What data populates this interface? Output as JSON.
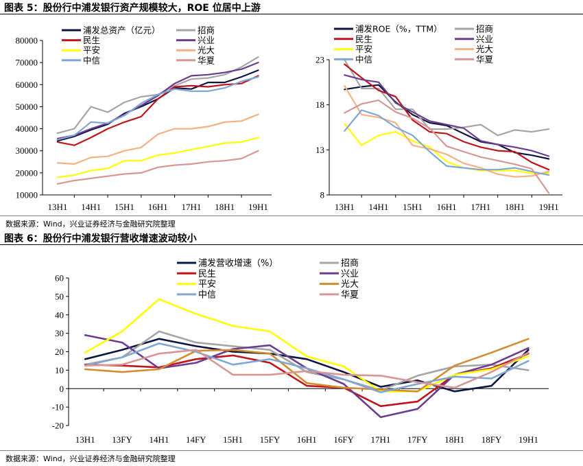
{
  "figure5": {
    "title": "图表 5：股份行中浦发银行资产规模较大，ROE 位居中上游"
  },
  "figure6": {
    "title": "图表 6：股份行中浦发银行营收增速波动较小"
  },
  "source_top": "数据来源：Wind，兴业证券经济与金融研究院整理",
  "source_bottom": "数据来源：Wind，兴业证券经济与金融研究院整理",
  "colors": {
    "浦发": "#0d1642",
    "招商": "#a5a5a5",
    "民生": "#c0141c",
    "兴业": "#6a3d8f",
    "平安": "#ffff00",
    "光大": "#f4b183",
    "中信": "#7fa7d6",
    "华夏": "#d99595",
    "光大_f6": "#d58b32"
  },
  "chart_data": [
    {
      "id": "assets",
      "type": "line",
      "title": "",
      "xlabel": "",
      "ylabel": "",
      "ylim": [
        10000,
        80000
      ],
      "yticks": [
        "80000",
        "70000",
        "60000",
        "50000",
        "40000",
        "30000",
        "20000",
        "10000"
      ],
      "categories": [
        "13H1",
        "14H1",
        "15H1",
        "16H1",
        "17H1",
        "18H1",
        "19H1"
      ],
      "x": [
        0,
        0.5,
        1,
        1.5,
        2,
        2.5,
        3,
        3.5,
        4,
        4.5,
        5,
        5.5,
        6
      ],
      "legend_placement": "top",
      "series": [
        {
          "name": "浦发总资产（亿元）",
          "key": "浦发",
          "values": [
            34500,
            36500,
            39500,
            42000,
            47000,
            50000,
            53500,
            58500,
            58000,
            61000,
            61000,
            63500,
            66500
          ]
        },
        {
          "name": "招商",
          "key": "招商",
          "values": [
            38000,
            40000,
            50000,
            47500,
            52000,
            54500,
            55500,
            59500,
            62500,
            63000,
            64500,
            68000,
            72500
          ]
        },
        {
          "name": "民生",
          "key": "民生",
          "values": [
            34000,
            32500,
            36000,
            40000,
            43000,
            45500,
            53500,
            59000,
            59500,
            59000,
            60000,
            60500,
            64000
          ]
        },
        {
          "name": "兴业",
          "key": "兴业",
          "values": [
            35500,
            37000,
            40000,
            42500,
            46500,
            50500,
            55000,
            60500,
            64000,
            64500,
            65500,
            67000,
            70000
          ]
        },
        {
          "name": "平安",
          "key": "平安",
          "values": [
            18000,
            19000,
            21000,
            22000,
            25500,
            25500,
            28000,
            29000,
            30500,
            32000,
            33500,
            34000,
            36000
          ]
        },
        {
          "name": "光大",
          "key": "光大",
          "values": [
            24500,
            24000,
            27000,
            27500,
            30000,
            31500,
            37500,
            40000,
            40000,
            41000,
            43000,
            43500,
            46500
          ]
        },
        {
          "name": "中信",
          "key": "中信",
          "values": [
            35000,
            37000,
            43000,
            42500,
            46000,
            51500,
            55500,
            58000,
            57000,
            57000,
            58500,
            61500,
            63500
          ]
        },
        {
          "name": "华夏",
          "key": "华夏",
          "values": [
            15000,
            16500,
            17500,
            18500,
            19500,
            20000,
            22500,
            23500,
            24000,
            25000,
            25500,
            26500,
            30000
          ]
        }
      ]
    },
    {
      "id": "roe",
      "type": "line",
      "title": "",
      "xlabel": "",
      "ylabel": "",
      "ylim": [
        8,
        23
      ],
      "yticks": [
        "23",
        "18",
        "13",
        "8"
      ],
      "categories": [
        "13H1",
        "14H1",
        "15H1",
        "16H1",
        "17H1",
        "18H1",
        "19H1"
      ],
      "x": [
        0,
        0.5,
        1,
        1.5,
        2,
        2.5,
        3,
        3.5,
        4,
        4.5,
        5,
        5.5,
        6
      ],
      "legend_placement": "top",
      "series": [
        {
          "name": "浦发ROE（%，TTM）",
          "key": "浦发",
          "values": [
            19.7,
            20.0,
            20.2,
            18.3,
            16.9,
            16.0,
            15.7,
            14.8,
            13.9,
            13.6,
            12.7,
            12.4,
            12.0
          ]
        },
        {
          "name": "招商",
          "key": "招商",
          "values": [
            23.0,
            19.8,
            19.8,
            17.5,
            17.5,
            15.3,
            15.3,
            15.5,
            15.8,
            14.6,
            15.2,
            15.0,
            15.3
          ]
        },
        {
          "name": "民生",
          "key": "民生",
          "values": [
            22.5,
            21.0,
            19.6,
            18.9,
            16.3,
            15.0,
            14.8,
            13.9,
            13.3,
            12.9,
            12.8,
            11.6,
            10.8
          ]
        },
        {
          "name": "兴业",
          "key": "兴业",
          "values": [
            21.3,
            20.8,
            20.5,
            18.2,
            17.2,
            16.2,
            15.8,
            15.4,
            14.0,
            13.6,
            13.3,
            12.9,
            12.3
          ]
        },
        {
          "name": "平安",
          "key": "平安",
          "values": [
            15.9,
            13.5,
            14.6,
            15.0,
            14.0,
            13.3,
            11.7,
            11.0,
            10.7,
            10.7,
            10.7,
            10.4,
            10.4
          ]
        },
        {
          "name": "光大",
          "key": "光大",
          "values": [
            20.1,
            16.9,
            16.6,
            16.0,
            13.5,
            13.1,
            12.5,
            11.5,
            11.0,
            10.3,
            10.0,
            10.1,
            10.6
          ]
        },
        {
          "name": "中信",
          "key": "中信",
          "values": [
            15.1,
            17.4,
            16.8,
            15.5,
            14.6,
            12.8,
            11.2,
            11.0,
            10.8,
            10.8,
            11.0,
            10.6,
            10.2
          ]
        },
        {
          "name": "华夏",
          "key": "华夏",
          "values": [
            17.1,
            18.1,
            18.5,
            17.2,
            16.5,
            15.4,
            13.4,
            12.8,
            12.2,
            11.8,
            11.4,
            10.9,
            8.2
          ]
        }
      ]
    },
    {
      "id": "revenue_growth",
      "type": "line",
      "title": "",
      "xlabel": "",
      "ylabel": "",
      "ylim": [
        -20,
        60
      ],
      "yticks": [
        "60",
        "50",
        "40",
        "30",
        "20",
        "10",
        "0",
        "-10",
        "-20"
      ],
      "categories": [
        "13H1",
        "13FY",
        "14H1",
        "14FY",
        "15H1",
        "15FY",
        "16H1",
        "16FY",
        "17H1",
        "17FY",
        "18H1",
        "18FY",
        "19H1"
      ],
      "x": [
        0,
        1,
        2,
        3,
        4,
        5,
        6,
        7,
        8,
        9,
        10,
        11,
        12
      ],
      "legend_placement": "top",
      "series": [
        {
          "name": "浦发营收增速（%）",
          "key": "浦发",
          "values": [
            16.0,
            21.0,
            27.0,
            23.0,
            20.0,
            19.0,
            16.0,
            9.0,
            1.0,
            4.5,
            -1.5,
            1.5,
            21.0
          ]
        },
        {
          "name": "招商",
          "key": "招商",
          "values": [
            13.0,
            17.0,
            31.0,
            25.0,
            23.0,
            21.0,
            9.0,
            5.0,
            -1.0,
            7.0,
            12.0,
            13.0,
            10.0
          ]
        },
        {
          "name": "民生",
          "key": "民生",
          "values": [
            13.0,
            12.5,
            11.5,
            16.0,
            18.0,
            14.0,
            1.5,
            0.5,
            -9.5,
            -7.0,
            7.5,
            11.0,
            19.0
          ]
        },
        {
          "name": "兴业",
          "key": "兴业",
          "values": [
            29.0,
            25.0,
            11.0,
            14.0,
            21.5,
            23.5,
            11.0,
            2.5,
            -15.5,
            -11.0,
            7.5,
            13.0,
            22.0
          ]
        },
        {
          "name": "平安",
          "key": "平安",
          "values": [
            19.5,
            31.0,
            48.5,
            40.5,
            34.0,
            31.0,
            17.5,
            12.0,
            -1.5,
            -1.5,
            7.5,
            10.5,
            17.5
          ]
        },
        {
          "name": "光大",
          "key": "光大",
          "values": [
            10.5,
            9.0,
            10.5,
            20.5,
            21.0,
            19.0,
            3.0,
            0.5,
            -0.5,
            -1.5,
            12.5,
            19.5,
            27.0
          ]
        },
        {
          "name": "中信",
          "key": "中信",
          "values": [
            12.5,
            17.0,
            24.5,
            20.0,
            13.0,
            16.0,
            11.0,
            5.0,
            -2.0,
            2.5,
            6.5,
            5.5,
            15.0
          ]
        },
        {
          "name": "华夏",
          "key": "华夏",
          "values": [
            12.5,
            13.0,
            19.0,
            21.0,
            7.5,
            7.5,
            9.5,
            7.5,
            7.0,
            3.5,
            0.5,
            9.0,
            19.5
          ]
        }
      ]
    }
  ]
}
